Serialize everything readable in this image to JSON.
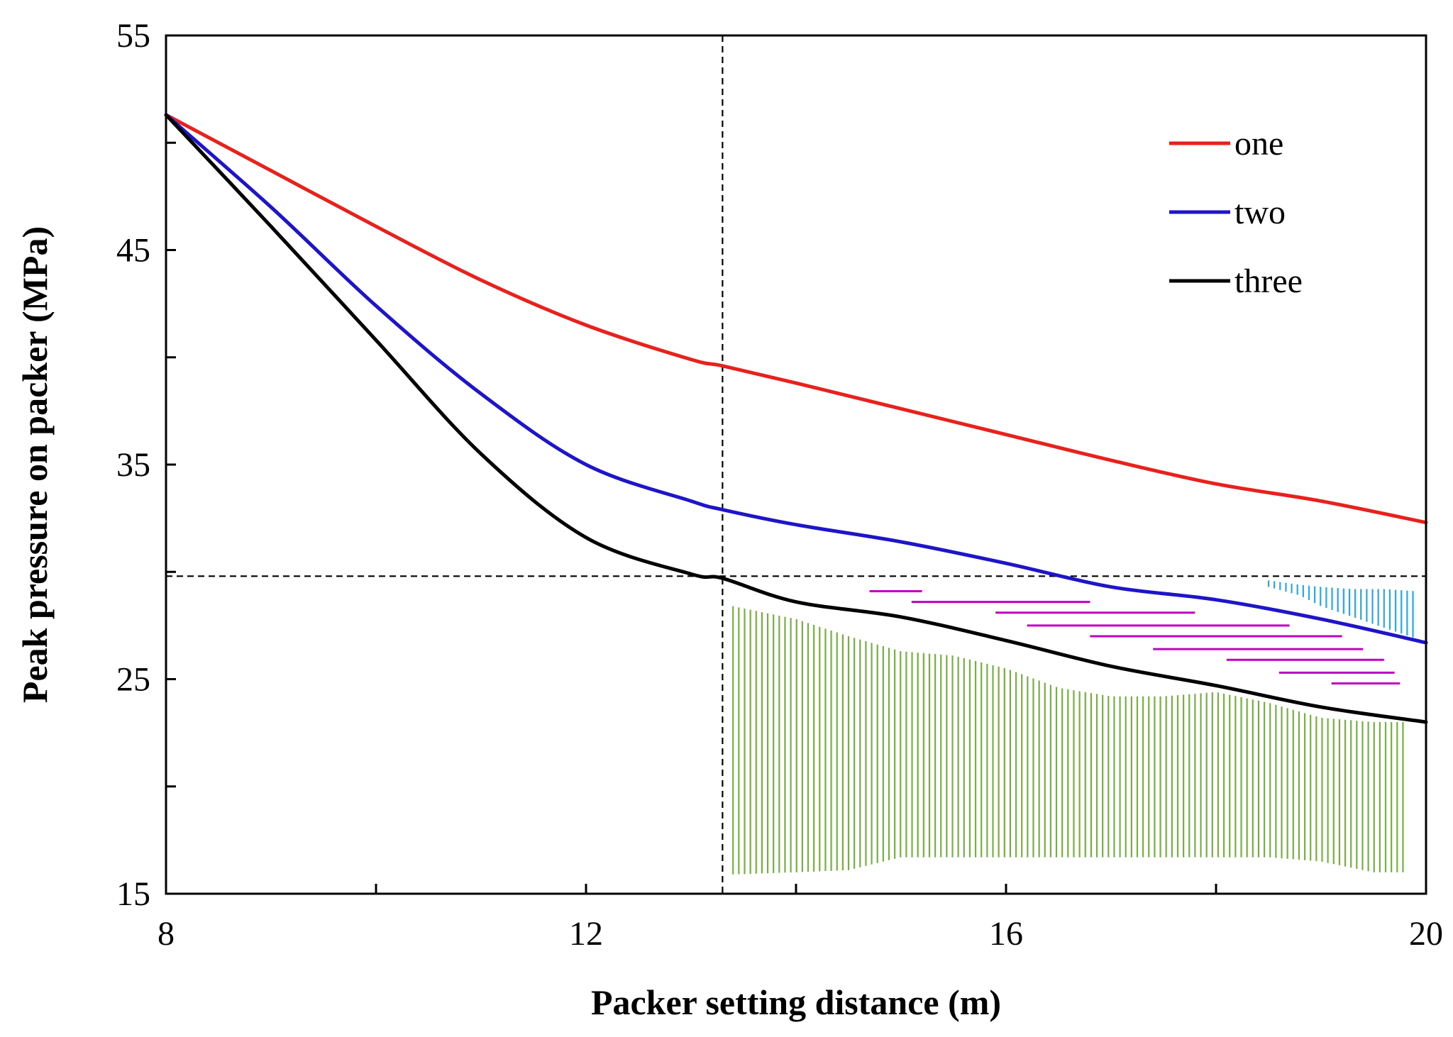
{
  "chart_data": {
    "type": "line",
    "title": "",
    "xlabel": "Packer setting distance (m)",
    "ylabel": "Peak pressure on packer (MPa)",
    "xlim": [
      8,
      20
    ],
    "ylim": [
      15,
      55
    ],
    "xticks": [
      8,
      10,
      12,
      14,
      16,
      18,
      20
    ],
    "xtick_labels": [
      "8",
      "",
      "12",
      "",
      "16",
      "",
      "20"
    ],
    "yticks": [
      15,
      20,
      25,
      30,
      35,
      40,
      45,
      50,
      55
    ],
    "ytick_labels": [
      "15",
      "",
      "25",
      "",
      "35",
      "",
      "45",
      "",
      "55"
    ],
    "legend_position": "top-right",
    "grid": false,
    "series": [
      {
        "name": "one",
        "color": "#e8211d",
        "x": [
          8,
          9,
          10,
          11,
          12,
          13,
          13.3,
          14,
          15,
          16,
          17,
          18,
          19,
          20
        ],
        "y": [
          51.3,
          48.7,
          46.1,
          43.6,
          41.5,
          39.9,
          39.6,
          38.8,
          37.6,
          36.4,
          35.2,
          34.1,
          33.3,
          32.3
        ]
      },
      {
        "name": "two",
        "color": "#1e14c8",
        "x": [
          8,
          9,
          10,
          11,
          12,
          13,
          13.3,
          14,
          15,
          16,
          17,
          18,
          19,
          20
        ],
        "y": [
          51.3,
          47.0,
          42.4,
          38.3,
          35.0,
          33.3,
          32.9,
          32.2,
          31.4,
          30.4,
          29.3,
          28.7,
          27.8,
          26.7
        ]
      },
      {
        "name": "three",
        "color": "#000000",
        "x": [
          8,
          9,
          10,
          11,
          12,
          13,
          13.3,
          14,
          15,
          16,
          17,
          18,
          19,
          20
        ],
        "y": [
          51.3,
          46.1,
          40.8,
          35.5,
          31.6,
          29.9,
          29.7,
          28.6,
          27.9,
          26.8,
          25.6,
          24.7,
          23.7,
          23.0
        ]
      }
    ],
    "reference_lines": [
      {
        "orientation": "vertical",
        "value": 13.3,
        "style": "dashed"
      },
      {
        "orientation": "horizontal",
        "value": 29.8,
        "style": "dashed"
      }
    ],
    "hatched_regions": [
      {
        "name": "green-region",
        "color": "#76b041",
        "pattern": "vertical",
        "x": [
          13.4,
          14,
          14.5,
          15,
          15.5,
          16,
          16.5,
          17,
          17.5,
          18,
          18.5,
          19,
          19.5,
          19.8
        ],
        "y_top": [
          28.4,
          27.8,
          27.0,
          26.3,
          26.1,
          25.5,
          24.6,
          24.2,
          24.2,
          24.4,
          23.9,
          23.2,
          23.0,
          23.0
        ],
        "y_bottom": [
          15.9,
          16.0,
          16.1,
          16.7,
          16.7,
          16.7,
          16.7,
          16.7,
          16.7,
          16.7,
          16.7,
          16.5,
          16.0,
          16.0
        ]
      },
      {
        "name": "magenta-region",
        "color": "#c000c0",
        "pattern": "horizontal",
        "x_left": [
          14.7,
          15.1,
          15.9,
          16.2,
          16.8,
          17.4,
          18.1,
          18.6,
          19.1
        ],
        "x_right": [
          15.2,
          16.8,
          17.8,
          18.7,
          19.2,
          19.4,
          19.6,
          19.7,
          19.75
        ],
        "y": [
          29.1,
          28.6,
          28.1,
          27.5,
          27.0,
          26.4,
          25.9,
          25.3,
          24.8
        ]
      },
      {
        "name": "cyan-region",
        "color": "#29a9e0",
        "pattern": "vertical",
        "x": [
          18.5,
          18.8,
          19.0,
          19.3,
          19.6,
          19.9
        ],
        "y_top": [
          29.6,
          29.4,
          29.3,
          29.2,
          29.2,
          29.1
        ],
        "y_bottom": [
          29.3,
          28.9,
          28.4,
          27.9,
          27.4,
          26.9
        ]
      }
    ]
  }
}
